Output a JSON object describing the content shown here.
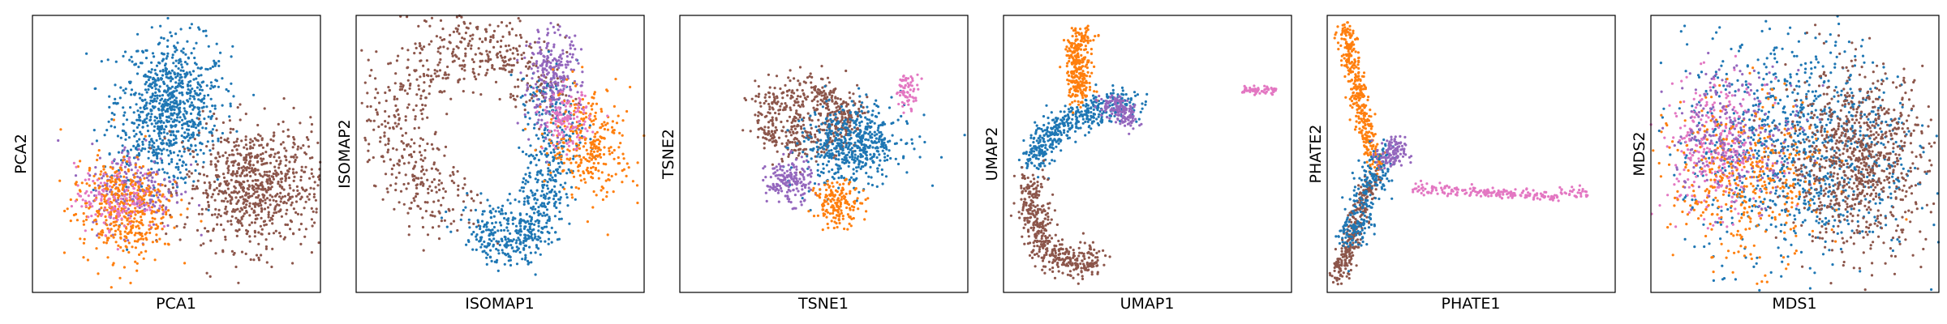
{
  "palette": {
    "blue": "#1f77b4",
    "orange": "#ff7f0e",
    "purple": "#9467bd",
    "brown": "#8c564b",
    "pink": "#e377c2",
    "red": "#d62728",
    "frame": "#000000"
  },
  "chart_data": [
    {
      "type": "scatter",
      "xlabel": "PCA1",
      "ylabel": "PCA2",
      "ticks": "none",
      "xlim": [
        0,
        100
      ],
      "ylim": [
        0,
        100
      ],
      "clusters": [
        {
          "color": "blue",
          "n": 850,
          "center": [
            47,
            66
          ],
          "spread": [
            9,
            13
          ],
          "angle": -10
        },
        {
          "color": "brown",
          "n": 800,
          "center": [
            77,
            38
          ],
          "spread": [
            12,
            11
          ],
          "angle": 0
        },
        {
          "color": "purple",
          "n": 220,
          "center": [
            36,
            38
          ],
          "spread": [
            8,
            8
          ],
          "angle": 0
        },
        {
          "color": "orange",
          "n": 450,
          "center": [
            31,
            30
          ],
          "spread": [
            8,
            9
          ],
          "angle": 10
        },
        {
          "color": "pink",
          "n": 140,
          "center": [
            29,
            34
          ],
          "spread": [
            7,
            6
          ],
          "angle": 0
        }
      ]
    },
    {
      "type": "scatter",
      "xlabel": "ISOMAP1",
      "ylabel": "ISOMAP2",
      "ticks": "none",
      "xlim": [
        0,
        100
      ],
      "ylim": [
        0,
        100
      ],
      "clusters": [
        {
          "color": "brown",
          "n": 650,
          "shape": "arc",
          "center": [
            40,
            60
          ],
          "radius": [
            26,
            30
          ],
          "arc": [
            20,
            260
          ],
          "width": 7
        },
        {
          "color": "blue",
          "n": 650,
          "shape": "arc",
          "center": [
            52,
            55
          ],
          "radius": [
            17,
            36
          ],
          "arc": [
            235,
            395
          ],
          "width": 5
        },
        {
          "color": "purple",
          "n": 260,
          "center": [
            68,
            77
          ],
          "spread": [
            5,
            9
          ],
          "angle": 0
        },
        {
          "color": "orange",
          "n": 300,
          "center": [
            81,
            54
          ],
          "spread": [
            7,
            10
          ],
          "angle": 10
        },
        {
          "color": "pink",
          "n": 120,
          "center": [
            73,
            62
          ],
          "spread": [
            4,
            5
          ],
          "angle": 0
        }
      ]
    },
    {
      "type": "scatter",
      "xlabel": "TSNE1",
      "ylabel": "TSNE2",
      "ticks": "none",
      "xlim": [
        0,
        100
      ],
      "ylim": [
        0,
        100
      ],
      "clusters": [
        {
          "color": "brown",
          "n": 550,
          "shape": "arc",
          "center": [
            43,
            63
          ],
          "radius": [
            14,
            8
          ],
          "arc": [
            200,
            520
          ],
          "width": 4
        },
        {
          "color": "blue",
          "n": 550,
          "center": [
            60,
            53
          ],
          "spread": [
            9,
            7
          ],
          "angle": 15
        },
        {
          "color": "purple",
          "n": 170,
          "center": [
            38,
            40
          ],
          "spread": [
            4,
            4
          ],
          "angle": 0
        },
        {
          "color": "orange",
          "n": 170,
          "center": [
            55,
            32
          ],
          "spread": [
            4,
            4
          ],
          "angle": 0
        },
        {
          "color": "pink",
          "n": 70,
          "center": [
            79,
            73
          ],
          "spread": [
            2,
            3
          ],
          "angle": 0
        }
      ]
    },
    {
      "type": "scatter",
      "xlabel": "UMAP1",
      "ylabel": "UMAP2",
      "ticks": "none",
      "xlim": [
        0,
        100
      ],
      "ylim": [
        0,
        100
      ],
      "clusters": [
        {
          "color": "blue",
          "n": 450,
          "shape": "poly",
          "path": [
            [
              10,
              46
            ],
            [
              16,
              58
            ],
            [
              26,
              63
            ],
            [
              37,
              67
            ],
            [
              45,
              68
            ]
          ],
          "width": 2.8
        },
        {
          "color": "orange",
          "n": 300,
          "shape": "poly",
          "path": [
            [
              26,
              70
            ],
            [
              26,
              80
            ],
            [
              25,
              88
            ],
            [
              28,
              93
            ]
          ],
          "width": 2.2
        },
        {
          "color": "purple",
          "n": 150,
          "shape": "poly",
          "path": [
            [
              36,
              68
            ],
            [
              40,
              67
            ],
            [
              44,
              62
            ]
          ],
          "width": 2
        },
        {
          "color": "brown",
          "n": 450,
          "shape": "poly",
          "path": [
            [
              10,
              40
            ],
            [
              11,
              25
            ],
            [
              14,
              15
            ],
            [
              22,
              11
            ],
            [
              30,
              10
            ],
            [
              32,
              15
            ]
          ],
          "width": 2.8
        },
        {
          "color": "pink",
          "n": 60,
          "shape": "poly",
          "path": [
            [
              83,
              73
            ],
            [
              95,
              73
            ]
          ],
          "width": 0.8
        }
      ]
    },
    {
      "type": "scatter",
      "xlabel": "PHATE1",
      "ylabel": "PHATE2",
      "ticks": "none",
      "xlim": [
        0,
        100
      ],
      "ylim": [
        0,
        100
      ],
      "clusters": [
        {
          "color": "orange",
          "n": 380,
          "shape": "poly",
          "path": [
            [
              6,
              95
            ],
            [
              10,
              75
            ],
            [
              14,
              55
            ],
            [
              17,
              45
            ]
          ],
          "width": 1.6
        },
        {
          "color": "brown",
          "n": 300,
          "shape": "poly",
          "path": [
            [
              4,
              5
            ],
            [
              10,
              25
            ],
            [
              16,
              42
            ]
          ],
          "width": 1.6
        },
        {
          "color": "blue",
          "n": 250,
          "shape": "poly",
          "path": [
            [
              8,
              18
            ],
            [
              14,
              35
            ],
            [
              20,
              50
            ]
          ],
          "width": 2.8
        },
        {
          "color": "purple",
          "n": 120,
          "center": [
            22,
            50
          ],
          "spread": [
            2.5,
            3
          ],
          "angle": 0
        },
        {
          "color": "pink",
          "n": 220,
          "shape": "poly",
          "path": [
            [
              30,
              38
            ],
            [
              55,
              36
            ],
            [
              75,
              35
            ],
            [
              90,
              36
            ]
          ],
          "width": 1.0
        }
      ]
    },
    {
      "type": "scatter",
      "xlabel": "MDS1",
      "ylabel": "MDS2",
      "ticks": "none",
      "xlim": [
        0,
        100
      ],
      "ylim": [
        0,
        100
      ],
      "clusters": [
        {
          "color": "blue",
          "n": 1000,
          "center": [
            52,
            52
          ],
          "spread": [
            20,
            20
          ],
          "angle": 0
        },
        {
          "color": "pink",
          "n": 320,
          "center": [
            22,
            52
          ],
          "spread": [
            9,
            12
          ],
          "angle": 0
        },
        {
          "color": "orange",
          "n": 420,
          "center": [
            33,
            40
          ],
          "spread": [
            13,
            15
          ],
          "angle": 0
        },
        {
          "color": "purple",
          "n": 250,
          "center": [
            30,
            58
          ],
          "spread": [
            12,
            12
          ],
          "angle": 0
        },
        {
          "color": "brown",
          "n": 850,
          "center": [
            72,
            48
          ],
          "spread": [
            12,
            16
          ],
          "angle": 0
        }
      ]
    }
  ]
}
